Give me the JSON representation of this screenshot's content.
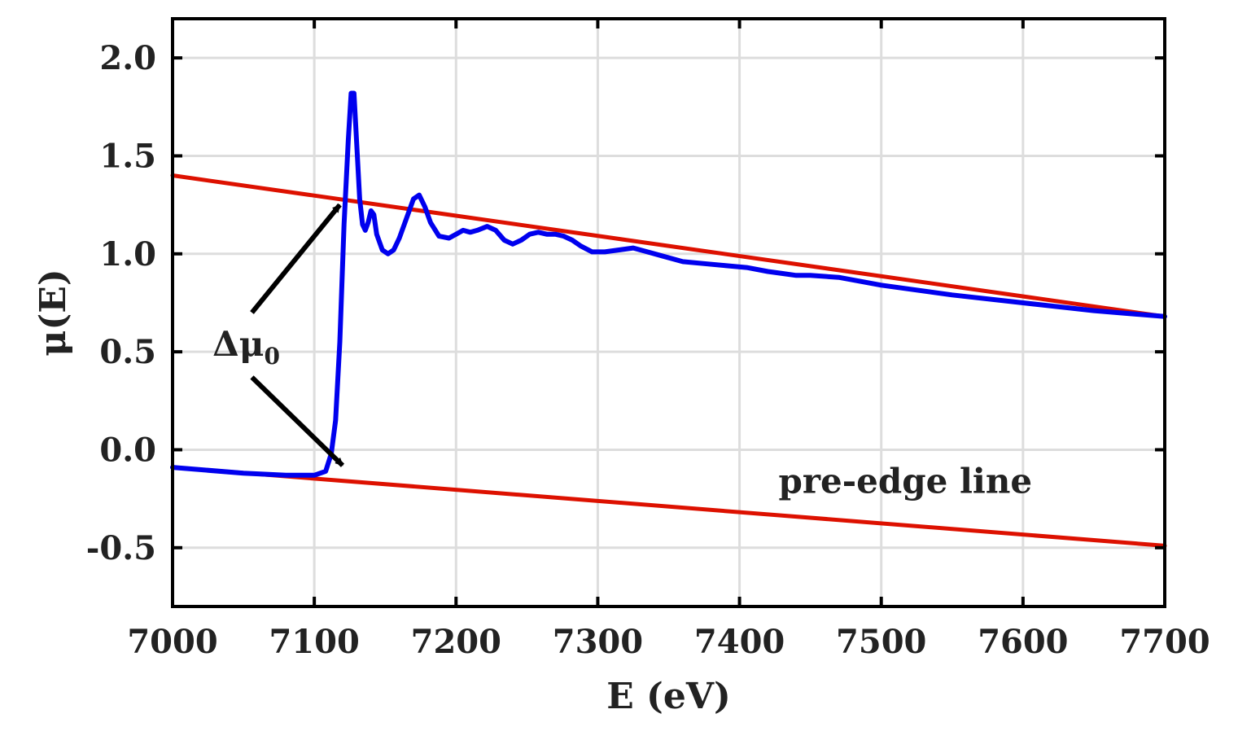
{
  "chart_data": {
    "type": "line",
    "xlabel": "E (eV)",
    "ylabel": "μ(E)",
    "xlim": [
      7000,
      7700
    ],
    "ylim": [
      -0.8,
      2.2
    ],
    "x_ticks": [
      "7000",
      "7100",
      "7200",
      "7300",
      "7400",
      "7500",
      "7600",
      "7700"
    ],
    "y_ticks": [
      "2.0",
      "1.5",
      "1.0",
      "0.5",
      "0.0",
      "-0.5"
    ],
    "grid": true,
    "colors": {
      "spectrum": "#0000ee",
      "fit_lines": "#dd1100",
      "arrow": "#000000"
    },
    "series": [
      {
        "kind": "post-edge-line",
        "x": [
          7000,
          7700
        ],
        "y": [
          1.4,
          0.68
        ]
      },
      {
        "kind": "pre-edge-line",
        "x": [
          7000,
          7700
        ],
        "y": [
          -0.09,
          -0.49
        ]
      },
      {
        "kind": "spectrum",
        "x": [
          7000,
          7050,
          7080,
          7100,
          7108,
          7112,
          7115,
          7118,
          7121,
          7124,
          7126,
          7128,
          7130,
          7132,
          7134,
          7136,
          7138,
          7140,
          7142,
          7144,
          7148,
          7152,
          7156,
          7160,
          7165,
          7170,
          7174,
          7178,
          7182,
          7188,
          7195,
          7200,
          7205,
          7210,
          7215,
          7222,
          7228,
          7234,
          7240,
          7246,
          7252,
          7258,
          7264,
          7270,
          7276,
          7282,
          7288,
          7296,
          7305,
          7315,
          7325,
          7335,
          7345,
          7360,
          7375,
          7390,
          7405,
          7420,
          7430,
          7440,
          7450,
          7470,
          7500,
          7550,
          7600,
          7650,
          7700
        ],
        "y": [
          -0.09,
          -0.12,
          -0.13,
          -0.13,
          -0.11,
          -0.02,
          0.15,
          0.55,
          1.15,
          1.58,
          1.82,
          1.82,
          1.55,
          1.28,
          1.15,
          1.12,
          1.16,
          1.22,
          1.2,
          1.1,
          1.02,
          1.0,
          1.02,
          1.08,
          1.18,
          1.28,
          1.3,
          1.24,
          1.16,
          1.09,
          1.08,
          1.1,
          1.12,
          1.11,
          1.12,
          1.14,
          1.12,
          1.07,
          1.05,
          1.07,
          1.1,
          1.11,
          1.1,
          1.1,
          1.09,
          1.07,
          1.04,
          1.01,
          1.01,
          1.02,
          1.03,
          1.01,
          0.99,
          0.96,
          0.95,
          0.94,
          0.93,
          0.91,
          0.9,
          0.89,
          0.89,
          0.88,
          0.84,
          0.79,
          0.75,
          0.71,
          0.68
        ]
      }
    ],
    "annotations": [
      {
        "text": "Δμ",
        "subscript": "0"
      },
      {
        "text": "pre-edge line"
      }
    ]
  }
}
